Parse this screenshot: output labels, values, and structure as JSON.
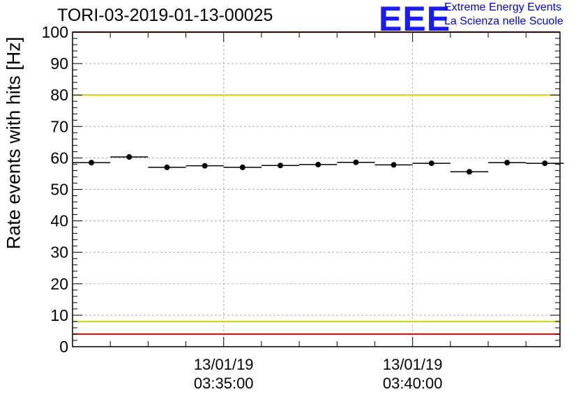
{
  "header": {
    "title": "TORI-03-2019-01-13-00025",
    "logo_text": "EEE",
    "logo_line1": "Extreme Energy Events",
    "logo_line2": "La Scienza nelle Scuole"
  },
  "chart_data": {
    "type": "scatter",
    "title": "TORI-03-2019-01-13-00025",
    "ylabel": "Rate events with hits [Hz]",
    "xlabel": "",
    "ylim": [
      0,
      100
    ],
    "yticks": [
      0,
      10,
      20,
      30,
      40,
      50,
      60,
      70,
      80,
      90,
      100
    ],
    "xlim_minutes": [
      0,
      12.9
    ],
    "x_tick_labels": [
      {
        "minute": 4.0,
        "date": "13/01/19",
        "time": "03:35:00"
      },
      {
        "minute": 9.0,
        "date": "13/01/19",
        "time": "03:40:00"
      }
    ],
    "points": [
      {
        "x": 0.5,
        "y": 58.5
      },
      {
        "x": 1.5,
        "y": 60.3
      },
      {
        "x": 2.5,
        "y": 57.0
      },
      {
        "x": 3.5,
        "y": 57.5
      },
      {
        "x": 4.5,
        "y": 57.0
      },
      {
        "x": 5.5,
        "y": 57.6
      },
      {
        "x": 6.5,
        "y": 57.9
      },
      {
        "x": 7.5,
        "y": 58.6
      },
      {
        "x": 8.5,
        "y": 57.8
      },
      {
        "x": 9.5,
        "y": 58.3
      },
      {
        "x": 10.5,
        "y": 55.6
      },
      {
        "x": 11.5,
        "y": 58.5
      },
      {
        "x": 12.5,
        "y": 58.3
      }
    ],
    "bin_width_minutes": 1.0,
    "reference_lines": [
      {
        "y": 100,
        "color": "#ff0000"
      },
      {
        "y": 80,
        "color": "#e8c800"
      },
      {
        "y": 8,
        "color": "#e8c800"
      },
      {
        "y": 4,
        "color": "#ff0000"
      }
    ],
    "grid": true
  }
}
